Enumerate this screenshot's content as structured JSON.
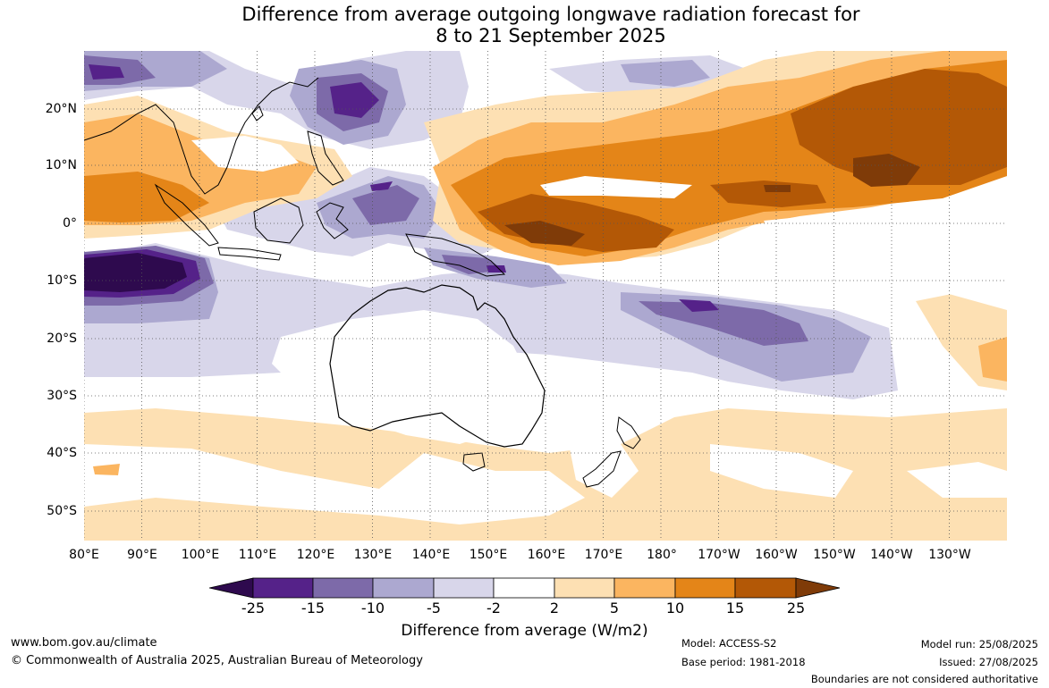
{
  "title": {
    "line1": "Difference from average outgoing longwave radiation forecast for",
    "line2": "8 to 21 September 2025"
  },
  "axes": {
    "lon_labels": [
      "80°E",
      "90°E",
      "100°E",
      "110°E",
      "120°E",
      "130°E",
      "140°E",
      "150°E",
      "160°E",
      "170°E",
      "180°",
      "170°W",
      "160°W",
      "150°W",
      "140°W",
      "130°W"
    ],
    "lat_labels": [
      "20°N",
      "10°N",
      "0°",
      "10°S",
      "20°S",
      "30°S",
      "40°S",
      "50°S"
    ]
  },
  "colorbar": {
    "ticks": [
      "-25",
      "-15",
      "-10",
      "-5",
      "-2",
      "2",
      "5",
      "10",
      "15",
      "25"
    ],
    "colors": [
      "#2e0a4e",
      "#552289",
      "#7d6aa9",
      "#aca8d0",
      "#d8d6ea",
      "#ffffff",
      "#fde0b3",
      "#fbb560",
      "#e48518",
      "#b35806",
      "#7f3b08"
    ],
    "label": "Difference from average (W/m2)"
  },
  "footer": {
    "website": "www.bom.gov.au/climate",
    "copyright": "© Commonwealth of Australia 2025, Australian Bureau of Meteorology",
    "model": "Model: ACCESS-S2",
    "base_period": "Base period: 1981-2018",
    "model_run": "Model run: 25/08/2025",
    "issued": "Issued: 27/08/2025",
    "disclaimer": "Boundaries are not considered authoritative"
  }
}
